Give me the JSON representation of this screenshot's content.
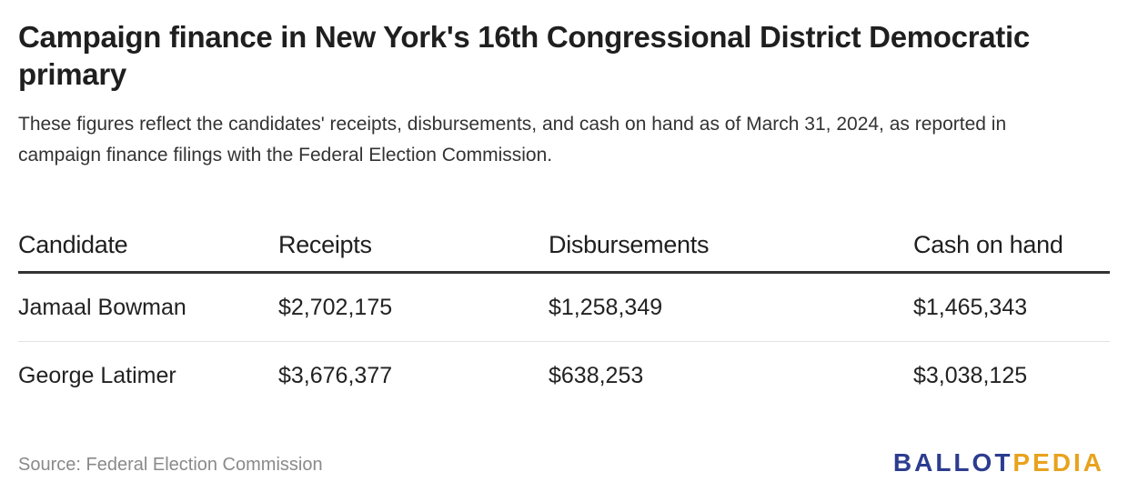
{
  "header": {
    "title": "Campaign finance in New York's 16th Congressional District Democratic primary",
    "subtitle": "These figures reflect the candidates' receipts, disbursements, and cash on hand as of March 31, 2024, as reported in campaign finance filings with the Federal Election Commission."
  },
  "table": {
    "columns": [
      "Candidate",
      "Receipts",
      "Disbursements",
      "Cash on hand"
    ],
    "rows": [
      [
        "Jamaal Bowman",
        "$2,702,175",
        "$1,258,349",
        "$1,465,343"
      ],
      [
        "George Latimer",
        "$3,676,377",
        "$638,253",
        "$3,038,125"
      ]
    ]
  },
  "footer": {
    "source": "Source: Federal Election Commission",
    "logo_part_a": "BALLOT",
    "logo_part_b": "PEDIA"
  },
  "colors": {
    "logo_blue": "#2c3c8f",
    "logo_gold": "#e8a21d",
    "source_gray": "#8a8a8a"
  }
}
